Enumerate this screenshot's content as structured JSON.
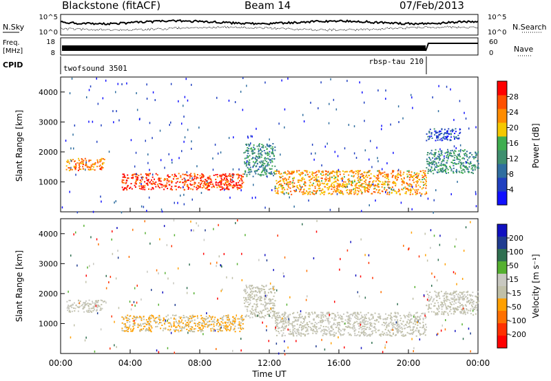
{
  "header": {
    "station": "Blackstone (fitACF)",
    "beam": "Beam 14",
    "date": "07/Feb/2013"
  },
  "side_labels": {
    "nsky": "N.Sky",
    "nsearch": "N.Search",
    "freq_line1": "Freq.",
    "freq_line2": "[MHz]",
    "nave": "Nave",
    "cpid": "CPID"
  },
  "top_axes": {
    "noise_left_ticks": [
      "10^5",
      "10^0"
    ],
    "noise_right_ticks": [
      "10^5",
      "10^0"
    ],
    "freq_ticks": [
      "18",
      "8"
    ],
    "nave_ticks": [
      "60",
      "0"
    ]
  },
  "cpid_labels": [
    "twofsound 3501",
    "rbsp-tau 210"
  ],
  "colors": {
    "power_scale": [
      "#1010ff",
      "#2040c0",
      "#2f6ea0",
      "#3f8f6f",
      "#3fae4f",
      "#f5c800",
      "#ff8c00",
      "#ff5000",
      "#ff0000"
    ],
    "velocity_scale": [
      "#1010c0",
      "#203c90",
      "#2f6f50",
      "#55b030",
      "#c8c8c0",
      "#c0c0a8",
      "#ffa000",
      "#ff7000",
      "#ff3000",
      "#ff0000"
    ]
  },
  "chart_data": [
    {
      "type": "heatmap",
      "panel": "power",
      "xlabel": "",
      "ylabel": "Slant Range [km]",
      "yticks": [
        "1000",
        "2000",
        "3000",
        "4000"
      ],
      "ylim": [
        0,
        4500
      ],
      "colorbar": {
        "label": "Power [dB]",
        "ticks": [
          "4",
          "8",
          "12",
          "16",
          "20",
          "24",
          "28"
        ],
        "range": [
          0,
          32
        ]
      },
      "series": [
        {
          "name": "",
          "x_hours": [
            0.3,
            2.5
          ],
          "range_km": [
            1400,
            1800
          ],
          "value": 24
        },
        {
          "name": "",
          "x_hours": [
            3.5,
            10.5
          ],
          "range_km": [
            750,
            1300
          ],
          "value": 28
        },
        {
          "name": "",
          "x_hours": [
            10.5,
            12.3
          ],
          "range_km": [
            1200,
            2300
          ],
          "value": 12
        },
        {
          "name": "",
          "x_hours": [
            12.3,
            21.0
          ],
          "range_km": [
            600,
            1400
          ],
          "value": 22
        },
        {
          "name": "",
          "x_hours": [
            21.0,
            24.0
          ],
          "range_km": [
            1300,
            2100
          ],
          "value": 12
        },
        {
          "name": "",
          "x_hours": [
            21.0,
            23.0
          ],
          "range_km": [
            2400,
            2800
          ],
          "value": 6
        }
      ]
    },
    {
      "type": "heatmap",
      "panel": "velocity",
      "xlabel": "Time UT",
      "ylabel": "Slant Range [km]",
      "yticks": [
        "1000",
        "2000",
        "3000",
        "4000"
      ],
      "ylim": [
        0,
        4500
      ],
      "xticks": [
        "00:00",
        "04:00",
        "08:00",
        "12:00",
        "16:00",
        "20:00",
        "00:00"
      ],
      "colorbar": {
        "label": "Velocity [m s⁻¹]",
        "ticks": [
          "200",
          "100",
          "50",
          "15",
          "-15",
          "-50",
          "-100",
          "-200"
        ],
        "range": [
          -250,
          250
        ]
      },
      "series": [
        {
          "name": "",
          "x_hours": [
            0.3,
            2.5
          ],
          "range_km": [
            1400,
            1800
          ],
          "value": 0
        },
        {
          "name": "",
          "x_hours": [
            3.5,
            10.5
          ],
          "range_km": [
            750,
            1300
          ],
          "value": -50
        },
        {
          "name": "",
          "x_hours": [
            10.5,
            12.3
          ],
          "range_km": [
            1200,
            2300
          ],
          "value": -15
        },
        {
          "name": "",
          "x_hours": [
            12.3,
            21.0
          ],
          "range_km": [
            600,
            1400
          ],
          "value": 0
        },
        {
          "name": "",
          "x_hours": [
            21.0,
            24.0
          ],
          "range_km": [
            1300,
            2100
          ],
          "value": 0
        }
      ]
    }
  ]
}
